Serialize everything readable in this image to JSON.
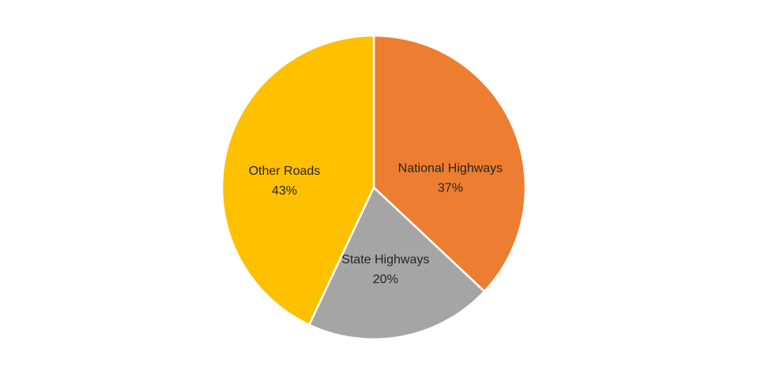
{
  "chart_data": {
    "type": "pie",
    "categories": [
      "National Highways",
      "State Highways",
      "Other Roads"
    ],
    "values": [
      37,
      20,
      43
    ],
    "value_labels": [
      "37%",
      "20%",
      "43%"
    ],
    "colors": [
      "#ED7D31",
      "#A5A5A5",
      "#FFC000"
    ]
  }
}
